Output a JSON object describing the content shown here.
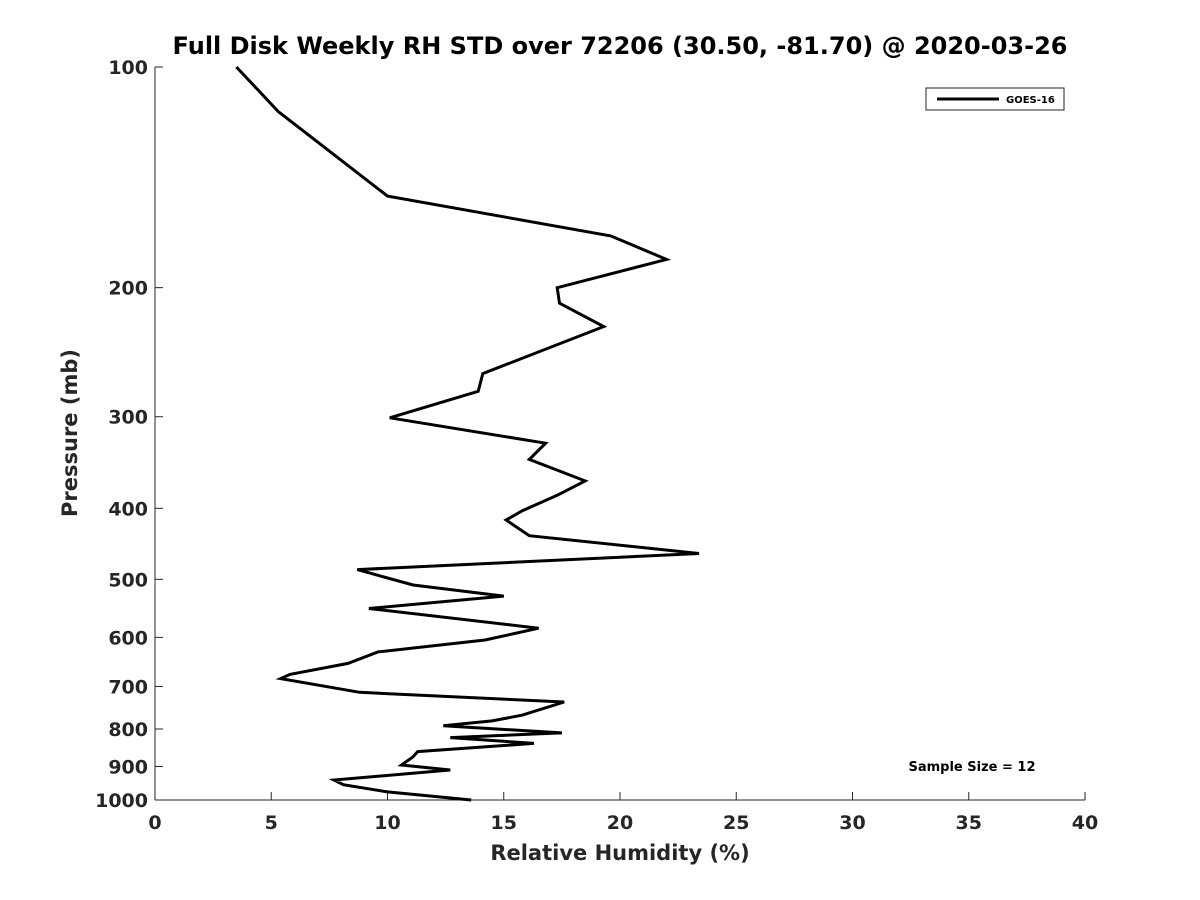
{
  "chart_data": {
    "type": "line",
    "title": "Full Disk Weekly RH STD over 72206 (30.50, -81.70) @ 2020-03-26",
    "xlabel": "Relative Humidity (%)",
    "ylabel": "Pressure (mb)",
    "xlim": [
      0,
      40
    ],
    "ylim": [
      100,
      1000
    ],
    "yscale": "log",
    "y_reversed": true,
    "grid": false,
    "x_ticks": [
      0,
      5,
      10,
      15,
      20,
      25,
      30,
      35,
      40
    ],
    "x_tick_labels": [
      "0",
      "5",
      "10",
      "15",
      "20",
      "25",
      "30",
      "35",
      "40"
    ],
    "y_ticks": [
      100,
      200,
      300,
      400,
      500,
      600,
      700,
      800,
      900,
      1000
    ],
    "y_tick_labels": [
      "100",
      "200",
      "300",
      "400",
      "500",
      "600",
      "700",
      "800",
      "900",
      "1000"
    ],
    "legend": {
      "position": "top-right",
      "entries": [
        "GOES-16"
      ]
    },
    "annotation": "Sample Size = 12",
    "series": [
      {
        "name": "GOES-16",
        "color": "#000000",
        "x": [
          3.5,
          5.3,
          10.0,
          19.6,
          22.0,
          17.3,
          17.4,
          19.3,
          14.1,
          13.9,
          10.1,
          16.8,
          16.1,
          18.5,
          17.3,
          15.8,
          15.1,
          16.1,
          23.4,
          8.7,
          11.1,
          15.0,
          9.2,
          16.5,
          14.2,
          9.6,
          8.3,
          5.8,
          5.4,
          8.8,
          17.6,
          15.8,
          14.5,
          12.4,
          17.5,
          12.7,
          16.3,
          11.3,
          11.1,
          10.6,
          12.7,
          7.7,
          8.1,
          10.0,
          13.6
        ],
        "y": [
          100,
          115,
          150,
          170,
          183,
          200,
          210,
          226,
          262,
          277,
          301,
          326,
          343,
          367,
          384,
          403,
          415,
          436,
          461,
          485,
          509,
          527,
          548,
          583,
          605,
          628,
          651,
          674,
          683,
          713,
          735,
          766,
          780,
          792,
          810,
          822,
          837,
          859,
          873,
          896,
          910,
          939,
          953,
          975,
          1000
        ]
      }
    ]
  }
}
